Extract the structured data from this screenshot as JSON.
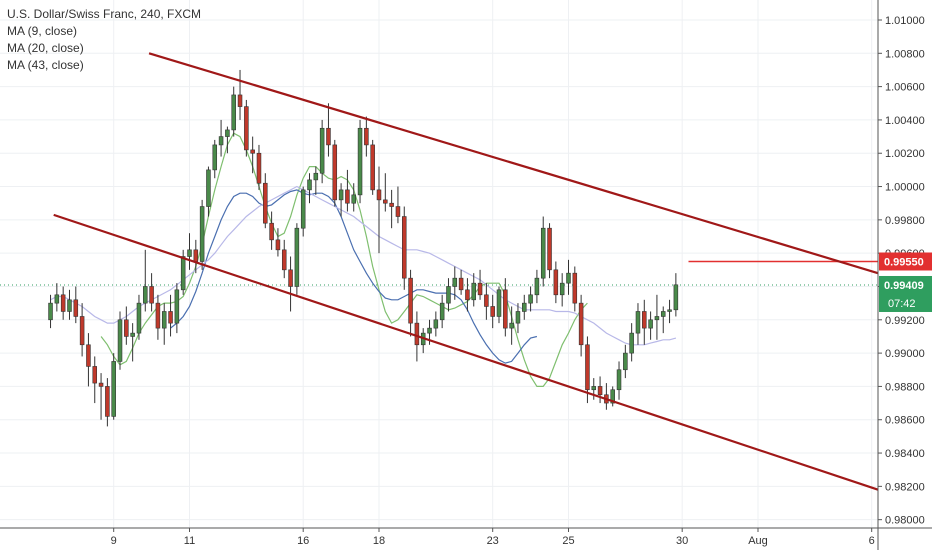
{
  "legend": {
    "title": "U.S. Dollar/Swiss Franc, 240, FXCM",
    "ma9": "MA (9, close)",
    "ma20": "MA (20, close)",
    "ma43": "MA (43, close)"
  },
  "price_tags": {
    "level_label": "0.99550",
    "last_label": "0.99409",
    "time_label": "07:42"
  },
  "colors": {
    "up": "#4a8a4a",
    "down": "#c0392b",
    "channel": "#a01818",
    "level": "#e23030",
    "ma9": "#7fbf6f",
    "ma20": "#4a6fb0",
    "ma43": "#b8b8e8",
    "last_price": "#2f9e5f"
  },
  "chart_data": {
    "type": "candlestick",
    "title": "U.S. Dollar/Swiss Franc, 240, FXCM",
    "y_range": [
      0.9795,
      1.0112
    ],
    "y_ticks": [
      "0.98000",
      "0.98200",
      "0.98400",
      "0.98600",
      "0.98800",
      "0.99000",
      "0.99200",
      "0.99400",
      "0.99600",
      "0.99800",
      "1.00000",
      "1.00200",
      "1.00400",
      "1.00600",
      "1.00800",
      "1.01000"
    ],
    "x_range": [
      -8,
      131
    ],
    "x_ticks": [
      {
        "label": "9",
        "bar": 10
      },
      {
        "label": "11",
        "bar": 22
      },
      {
        "label": "16",
        "bar": 40
      },
      {
        "label": "18",
        "bar": 52
      },
      {
        "label": "23",
        "bar": 70
      },
      {
        "label": "25",
        "bar": 82
      },
      {
        "label": "30",
        "bar": 100
      },
      {
        "label": "Aug",
        "bar": 112
      },
      {
        "label": "6",
        "bar": 130
      }
    ],
    "candles": [
      [
        0.992,
        0.9935,
        0.9915,
        0.993
      ],
      [
        0.993,
        0.9942,
        0.9925,
        0.9935
      ],
      [
        0.9935,
        0.994,
        0.992,
        0.9925
      ],
      [
        0.9925,
        0.9938,
        0.992,
        0.9932
      ],
      [
        0.9932,
        0.994,
        0.9918,
        0.9922
      ],
      [
        0.9922,
        0.993,
        0.9898,
        0.9905
      ],
      [
        0.9905,
        0.9912,
        0.988,
        0.9892
      ],
      [
        0.9892,
        0.9898,
        0.987,
        0.9882
      ],
      [
        0.9882,
        0.9888,
        0.986,
        0.988
      ],
      [
        0.988,
        0.9885,
        0.9856,
        0.9862
      ],
      [
        0.9862,
        0.99,
        0.986,
        0.9895
      ],
      [
        0.9895,
        0.9925,
        0.989,
        0.992
      ],
      [
        0.992,
        0.9928,
        0.9905,
        0.991
      ],
      [
        0.991,
        0.9918,
        0.9895,
        0.9912
      ],
      [
        0.9912,
        0.9935,
        0.9908,
        0.993
      ],
      [
        0.993,
        0.9962,
        0.9925,
        0.994
      ],
      [
        0.994,
        0.9948,
        0.9925,
        0.993
      ],
      [
        0.993,
        0.9935,
        0.9908,
        0.9915
      ],
      [
        0.9915,
        0.993,
        0.9905,
        0.9925
      ],
      [
        0.9925,
        0.9935,
        0.991,
        0.9918
      ],
      [
        0.9918,
        0.9942,
        0.9912,
        0.9938
      ],
      [
        0.9938,
        0.9962,
        0.9935,
        0.9958
      ],
      [
        0.9958,
        0.9972,
        0.995,
        0.9962
      ],
      [
        0.9962,
        0.9968,
        0.9948,
        0.9955
      ],
      [
        0.9955,
        0.9992,
        0.995,
        0.9988
      ],
      [
        0.9988,
        1.0012,
        0.9982,
        1.001
      ],
      [
        1.001,
        1.0028,
        1.0005,
        1.0025
      ],
      [
        1.0025,
        1.004,
        1.0018,
        1.003
      ],
      [
        1.003,
        1.0036,
        1.002,
        1.0034
      ],
      [
        1.0034,
        1.006,
        1.003,
        1.0055
      ],
      [
        1.0055,
        1.007,
        1.004,
        1.0048
      ],
      [
        1.0048,
        1.0052,
        1.0018,
        1.0022
      ],
      [
        1.0022,
        1.003,
        1.0008,
        1.002
      ],
      [
        1.002,
        1.0025,
        0.9998,
        1.0002
      ],
      [
        1.0002,
        1.0008,
        0.9975,
        0.9978
      ],
      [
        0.9978,
        0.9985,
        0.9962,
        0.9968
      ],
      [
        0.9968,
        0.9975,
        0.9958,
        0.9962
      ],
      [
        0.9962,
        0.9968,
        0.9945,
        0.995
      ],
      [
        0.995,
        0.9958,
        0.9925,
        0.994
      ],
      [
        0.994,
        0.9978,
        0.9935,
        0.9975
      ],
      [
        0.9975,
        1.0,
        0.997,
        0.9998
      ],
      [
        0.9998,
        1.0008,
        0.999,
        1.0004
      ],
      [
        1.0004,
        1.0012,
        0.9995,
        1.0008
      ],
      [
        1.0008,
        1.004,
        1.0002,
        1.0035
      ],
      [
        1.0035,
        1.005,
        1.0018,
        1.0025
      ],
      [
        1.0025,
        1.0028,
        0.9988,
        0.9992
      ],
      [
        0.9992,
        1.0002,
        0.9982,
        0.9998
      ],
      [
        0.9998,
        1.001,
        0.9985,
        0.999
      ],
      [
        0.999,
        1.0002,
        0.9985,
        0.9995
      ],
      [
        0.9995,
        1.004,
        0.999,
        1.0035
      ],
      [
        1.0035,
        1.0042,
        1.0018,
        1.0025
      ],
      [
        1.0025,
        1.0028,
        0.9995,
        0.9998
      ],
      [
        0.9998,
        1.0012,
        0.996,
        0.9992
      ],
      [
        0.9992,
        1.0008,
        0.9985,
        0.999
      ],
      [
        0.999,
        0.9998,
        0.9975,
        0.9988
      ],
      [
        0.9988,
        1.0,
        0.9978,
        0.9982
      ],
      [
        0.9982,
        0.9988,
        0.9938,
        0.9945
      ],
      [
        0.9945,
        0.995,
        0.991,
        0.9918
      ],
      [
        0.9918,
        0.9925,
        0.9895,
        0.9905
      ],
      [
        0.9905,
        0.9915,
        0.99,
        0.9912
      ],
      [
        0.9912,
        0.992,
        0.9905,
        0.9915
      ],
      [
        0.9915,
        0.9925,
        0.991,
        0.992
      ],
      [
        0.992,
        0.9935,
        0.9915,
        0.993
      ],
      [
        0.993,
        0.9945,
        0.9925,
        0.994
      ],
      [
        0.994,
        0.9952,
        0.9932,
        0.9945
      ],
      [
        0.9945,
        0.995,
        0.9935,
        0.9938
      ],
      [
        0.9938,
        0.9945,
        0.9925,
        0.9932
      ],
      [
        0.9932,
        0.9948,
        0.9928,
        0.9942
      ],
      [
        0.9942,
        0.995,
        0.9932,
        0.9935
      ],
      [
        0.9935,
        0.9942,
        0.992,
        0.9928
      ],
      [
        0.9928,
        0.9935,
        0.9915,
        0.9922
      ],
      [
        0.9922,
        0.994,
        0.9918,
        0.9938
      ],
      [
        0.9938,
        0.9945,
        0.991,
        0.9915
      ],
      [
        0.9915,
        0.9928,
        0.9905,
        0.9918
      ],
      [
        0.9918,
        0.993,
        0.9912,
        0.9925
      ],
      [
        0.9925,
        0.9935,
        0.992,
        0.993
      ],
      [
        0.993,
        0.994,
        0.9925,
        0.9935
      ],
      [
        0.9935,
        0.995,
        0.993,
        0.9945
      ],
      [
        0.9945,
        0.9982,
        0.994,
        0.9975
      ],
      [
        0.9975,
        0.9978,
        0.9945,
        0.995
      ],
      [
        0.995,
        0.9955,
        0.993,
        0.9935
      ],
      [
        0.9935,
        0.9948,
        0.9928,
        0.9942
      ],
      [
        0.9942,
        0.9956,
        0.9935,
        0.9948
      ],
      [
        0.9948,
        0.9952,
        0.9925,
        0.993
      ],
      [
        0.993,
        0.9935,
        0.9898,
        0.9905
      ],
      [
        0.9905,
        0.991,
        0.987,
        0.9878
      ],
      [
        0.9878,
        0.9885,
        0.9872,
        0.988
      ],
      [
        0.988,
        0.9886,
        0.987,
        0.9875
      ],
      [
        0.9875,
        0.9882,
        0.9866,
        0.987
      ],
      [
        0.987,
        0.988,
        0.9868,
        0.9878
      ],
      [
        0.9878,
        0.9895,
        0.9872,
        0.989
      ],
      [
        0.989,
        0.9905,
        0.9885,
        0.99
      ],
      [
        0.99,
        0.9918,
        0.9895,
        0.9912
      ],
      [
        0.9912,
        0.993,
        0.9905,
        0.9925
      ],
      [
        0.9925,
        0.9932,
        0.9905,
        0.9915
      ],
      [
        0.9915,
        0.9925,
        0.9908,
        0.992
      ],
      [
        0.992,
        0.9935,
        0.9908,
        0.9922
      ],
      [
        0.9922,
        0.9928,
        0.9912,
        0.9925
      ],
      [
        0.9925,
        0.9932,
        0.9918,
        0.9926
      ],
      [
        0.9926,
        0.9948,
        0.9922,
        0.9941
      ]
    ],
    "candle_bar_offset": 0,
    "moving_averages": [
      {
        "name": "MA (9, close)",
        "values_from_bar": 8,
        "values": [
          0.991,
          0.9905,
          0.9898,
          0.9893,
          0.9895,
          0.9903,
          0.9912,
          0.9918,
          0.9923,
          0.9928,
          0.993,
          0.993,
          0.9931,
          0.9934,
          0.9942,
          0.9952,
          0.9965,
          0.9982,
          0.9998,
          1.0012,
          1.0025,
          1.0032,
          1.003,
          1.0022,
          1.0012,
          1.0,
          0.9988,
          0.9978,
          0.997,
          0.9972,
          0.9982,
          0.9995,
          1.0005,
          1.0012,
          1.0012,
          1.0008,
          1.0005,
          1.0004,
          1.0006,
          1.0004,
          0.9998,
          0.9986,
          0.997,
          0.9952,
          0.9938,
          0.9925,
          0.9918,
          0.992,
          0.9925,
          0.993,
          0.9935,
          0.9934,
          0.9932,
          0.993,
          0.9928,
          0.9926,
          0.9927,
          0.9929,
          0.9931,
          0.9935,
          0.994,
          0.9942,
          0.9942,
          0.9942,
          0.9935,
          0.9922,
          0.9908,
          0.9896,
          0.9886,
          0.988,
          0.988,
          0.9885,
          0.9895,
          0.9905,
          0.9912,
          0.992,
          0.9926,
          0.993
        ]
      },
      {
        "name": "MA (20, close)",
        "values_from_bar": 19,
        "values": [
          0.9915,
          0.9918,
          0.9922,
          0.9928,
          0.9937,
          0.9948,
          0.996,
          0.997,
          0.998,
          0.9988,
          0.9994,
          0.9996,
          0.9996,
          0.9994,
          0.999,
          0.9988,
          0.9989,
          0.9992,
          0.9995,
          0.9997,
          0.9998,
          0.9996,
          0.9995,
          0.9996,
          0.9996,
          0.9994,
          0.999,
          0.9982,
          0.9972,
          0.9962,
          0.9955,
          0.9948,
          0.9942,
          0.9937,
          0.9933,
          0.9932,
          0.9932,
          0.9934,
          0.9936,
          0.9938,
          0.9938,
          0.9937,
          0.9936,
          0.9936,
          0.9936,
          0.9935,
          0.9932,
          0.9926,
          0.9918,
          0.9911,
          0.9905,
          0.99,
          0.9896,
          0.9894,
          0.9895,
          0.99,
          0.9905,
          0.9909,
          0.991
        ]
      },
      {
        "name": "MA (43, close)",
        "values_from_bar": 0,
        "values": [
          0.9932,
          0.9934,
          0.9934,
          0.9932,
          0.993,
          0.9928,
          0.9925,
          0.9922,
          0.992,
          0.9918,
          0.9918,
          0.992,
          0.9922,
          0.9925,
          0.9928,
          0.993,
          0.9932,
          0.9934,
          0.9936,
          0.9938,
          0.9941,
          0.9944,
          0.9947,
          0.995,
          0.9953,
          0.9956,
          0.996,
          0.9965,
          0.997,
          0.9974,
          0.9978,
          0.9982,
          0.9985,
          0.9988,
          0.999,
          0.9992,
          0.9994,
          0.9996,
          0.9998,
          1.0,
          0.9998,
          0.9996,
          0.9994,
          0.9992,
          0.999,
          0.9988,
          0.9986,
          0.9984,
          0.9982,
          0.9979,
          0.9976,
          0.9973,
          0.997,
          0.9968,
          0.9966,
          0.9964,
          0.9962,
          0.9962,
          0.9962,
          0.9961,
          0.996,
          0.9958,
          0.9956,
          0.9954,
          0.9952,
          0.995,
          0.9948,
          0.9946,
          0.9944,
          0.9941,
          0.9938,
          0.9935,
          0.9932,
          0.993,
          0.9928,
          0.9926,
          0.9926,
          0.9926,
          0.9926,
          0.9926,
          0.9925,
          0.9925,
          0.9925,
          0.9924,
          0.9922,
          0.992,
          0.9918,
          0.9915,
          0.9912,
          0.991,
          0.9908,
          0.9906,
          0.9905,
          0.9905,
          0.9905,
          0.9906,
          0.9907,
          0.9908,
          0.9908,
          0.9909
        ]
      }
    ],
    "channel_lines": [
      {
        "from": {
          "bar": 15.6,
          "y": 1.008
        },
        "to": {
          "bar": 131,
          "y": 0.9948
        }
      },
      {
        "from": {
          "bar": 0.5,
          "y": 0.9983
        },
        "to": {
          "bar": 131,
          "y": 0.9818
        }
      }
    ],
    "horizontal_level": {
      "from_bar": 101,
      "y": 0.9955
    },
    "last_price": 0.99409,
    "grid": true,
    "candle_up_color": "#4a8a4a",
    "candle_down_color": "#c0392b"
  }
}
